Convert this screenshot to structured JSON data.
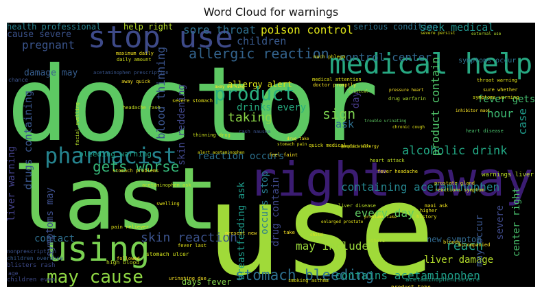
{
  "chart_data": {
    "type": "wordcloud",
    "title": "Word Cloud for warnings",
    "words": [
      {
        "text": "doctor",
        "color": "#5dc863"
      },
      {
        "text": "use",
        "color": "#a0da39"
      },
      {
        "text": "last",
        "color": "#6ccd5a"
      },
      {
        "text": "right away",
        "color": "#3b1c72"
      },
      {
        "text": "medical help",
        "color": "#27a882"
      },
      {
        "text": "stop use",
        "color": "#3e4a89"
      },
      {
        "text": "using",
        "color": "#7ad151"
      },
      {
        "text": "pharmacist",
        "color": "#25838e"
      },
      {
        "text": "may cause",
        "color": "#8fd744"
      },
      {
        "text": "gets worse",
        "color": "#35b779"
      },
      {
        "text": "product",
        "color": "#2ab07f"
      },
      {
        "text": "allergic reaction",
        "color": "#33638d"
      },
      {
        "text": "stomach bleeding",
        "color": "#2d708e"
      },
      {
        "text": "sore throat",
        "color": "#2e6f8e"
      },
      {
        "text": "poison control",
        "color": "#dde318"
      },
      {
        "text": "seek medical",
        "color": "#20928c"
      },
      {
        "text": "serious condition",
        "color": "#2c728e"
      },
      {
        "text": "control center",
        "color": "#31688e"
      },
      {
        "text": "children",
        "color": "#38598c"
      },
      {
        "text": "pregnant",
        "color": "#3a548c"
      },
      {
        "text": "alcoholic drink",
        "color": "#22a884"
      },
      {
        "text": "containing acetaminophen",
        "color": "#25858e"
      },
      {
        "text": "skin reaction",
        "color": "#3b528b"
      },
      {
        "text": "liver damage",
        "color": "#b5de2b"
      },
      {
        "text": "contains acetaminophen",
        "color": "#1f9e89"
      },
      {
        "text": "blood thinning",
        "color": "#3a538b"
      },
      {
        "text": "skin reddening",
        "color": "#404688"
      },
      {
        "text": "breastfeeding ask",
        "color": "#1e9b8a"
      },
      {
        "text": "drugs containing",
        "color": "#39568c"
      },
      {
        "text": "taking",
        "color": "#8bd646"
      },
      {
        "text": "sign",
        "color": "#7cd250"
      },
      {
        "text": "ask",
        "color": "#2e6e8e"
      },
      {
        "text": "day",
        "color": "#453882"
      },
      {
        "text": "reach",
        "color": "#1fa088"
      },
      {
        "text": "hour",
        "color": "#3dbc74"
      },
      {
        "text": "case",
        "color": "#1f9a8a"
      },
      {
        "text": "fever gets",
        "color": "#44bf70"
      },
      {
        "text": "warnings liver",
        "color": "#bddf26"
      },
      {
        "text": "center right",
        "color": "#4ac16d"
      },
      {
        "text": "severe",
        "color": "#3e4989"
      },
      {
        "text": "product contain",
        "color": "#4fc46a"
      },
      {
        "text": "drinks every",
        "color": "#26ad81"
      },
      {
        "text": "allergy alert",
        "color": "#dfe318"
      },
      {
        "text": "reaction occurs",
        "color": "#2c718e"
      },
      {
        "text": "every day",
        "color": "#5ec962"
      },
      {
        "text": "may include",
        "color": "#9bd93c"
      },
      {
        "text": "contact",
        "color": "#2e6e8e"
      },
      {
        "text": "new symptom",
        "color": "#31688e"
      },
      {
        "text": "drug contain",
        "color": "#3f4889"
      },
      {
        "text": "occurs stop",
        "color": "#287c8e"
      },
      {
        "text": "may occur",
        "color": "#39558c"
      },
      {
        "text": "liver warning",
        "color": "#424086"
      },
      {
        "text": "symptoms may",
        "color": "#3d4e8a"
      },
      {
        "text": "health professional",
        "color": "#26828e"
      },
      {
        "text": "help right",
        "color": "#b8de29"
      },
      {
        "text": "cause severe",
        "color": "#3b528b"
      },
      {
        "text": "damage may",
        "color": "#365d8d"
      },
      {
        "text": "bleeding warning",
        "color": "#1fa287"
      },
      {
        "text": "days fever",
        "color": "#84d44b"
      },
      {
        "text": "high blood",
        "color": "#c2df23"
      },
      {
        "text": "stomach ulcer",
        "color": "#d2e21b"
      },
      {
        "text": "symptoms occur",
        "color": "#2d708e"
      },
      {
        "text": "medical attention",
        "color": "#e5e419"
      },
      {
        "text": "doctor promptly",
        "color": "#fde725"
      },
      {
        "text": "drug warfarin",
        "color": "#b0dd2f"
      },
      {
        "text": "heart disease",
        "color": "#4ac16d"
      },
      {
        "text": "stomach pain",
        "color": "#e2e418"
      },
      {
        "text": "headache rash",
        "color": "#c8e020"
      },
      {
        "text": "sure whether",
        "color": "#f1e51d"
      },
      {
        "text": "acetaminophen prescription",
        "color": "#39558c"
      },
      {
        "text": "maximum daily",
        "color": "#f6e620"
      },
      {
        "text": "daily amount",
        "color": "#d5e21a"
      },
      {
        "text": "severe persist",
        "color": "#dae319"
      },
      {
        "text": "external use",
        "color": "#b5de2b"
      },
      {
        "text": "much phlegm",
        "color": "#e7e419"
      },
      {
        "text": "pressure heart",
        "color": "#fde725"
      },
      {
        "text": "trouble urinating",
        "color": "#5ec962"
      },
      {
        "text": "chronic cough",
        "color": "#e4e419"
      },
      {
        "text": "inhibitor maoi",
        "color": "#fde725"
      },
      {
        "text": "thinning drug",
        "color": "#cde11d"
      },
      {
        "text": "quick medical",
        "color": "#e5e419"
      },
      {
        "text": "drug take",
        "color": "#f8e621"
      },
      {
        "text": "rash nausea",
        "color": "#3b528b"
      },
      {
        "text": "product allergy",
        "color": "#f1e51d"
      },
      {
        "text": "complication",
        "color": "#d8e219"
      },
      {
        "text": "fever headache",
        "color": "#f4e61e"
      },
      {
        "text": "throat warning",
        "color": "#e5e419"
      },
      {
        "text": "symptoms warning",
        "color": "#e2e418"
      },
      {
        "text": "heart attack",
        "color": "#c0df25"
      },
      {
        "text": "alert acetaminophen",
        "color": "#e4e419"
      },
      {
        "text": "reactions symptom",
        "color": "#ece51b"
      },
      {
        "text": "acetaminophen ask",
        "color": "#c5e021"
      },
      {
        "text": "swelling",
        "color": "#e7e419"
      },
      {
        "text": "stomach problems",
        "color": "#f6e620"
      },
      {
        "text": "pain reliever",
        "color": "#e2e418"
      },
      {
        "text": "prostate gland",
        "color": "#f4e61e"
      },
      {
        "text": "liver disease",
        "color": "#bddf26"
      },
      {
        "text": "enlarged prostate",
        "color": "#e5e419"
      },
      {
        "text": "problems take",
        "color": "#f1e51d"
      },
      {
        "text": "urinating due",
        "color": "#fde725"
      },
      {
        "text": "children overdose",
        "color": "#365c8d"
      },
      {
        "text": "blisters rash",
        "color": "#3e4a89"
      },
      {
        "text": "children even",
        "color": "#3e4989"
      },
      {
        "text": "smoking asthma",
        "color": "#e5e419"
      },
      {
        "text": "acetaminophen severe",
        "color": "#1fa088"
      },
      {
        "text": "nonprescription",
        "color": "#3b528b"
      },
      {
        "text": "product take",
        "color": "#fde725"
      },
      {
        "text": "maoi ask",
        "color": "#f4e61e"
      },
      {
        "text": "higher",
        "color": "#e7e419"
      },
      {
        "text": "history",
        "color": "#e7e419"
      },
      {
        "text": "bloody",
        "color": "#f6e620"
      },
      {
        "text": "accompanied",
        "color": "#fde725"
      },
      {
        "text": "followed",
        "color": "#fde725"
      },
      {
        "text": "fever last",
        "color": "#e7e419"
      },
      {
        "text": "critical",
        "color": "#b0dd2f"
      },
      {
        "text": "chance",
        "color": "#3b528b"
      },
      {
        "text": "age",
        "color": "#3e4a89"
      },
      {
        "text": "others",
        "color": "#b5de2b"
      },
      {
        "text": "take",
        "color": "#fde725"
      },
      {
        "text": "child",
        "color": "#e4e419"
      },
      {
        "text": "present new",
        "color": "#fde725"
      },
      {
        "text": "away quick",
        "color": "#fde725"
      },
      {
        "text": "severe stomach",
        "color": "#e7e419"
      },
      {
        "text": "away warning",
        "color": "#fde725"
      },
      {
        "text": "feel faint",
        "color": "#fde725"
      },
      {
        "text": "facial swelling",
        "color": "#b5de2b"
      }
    ]
  }
}
